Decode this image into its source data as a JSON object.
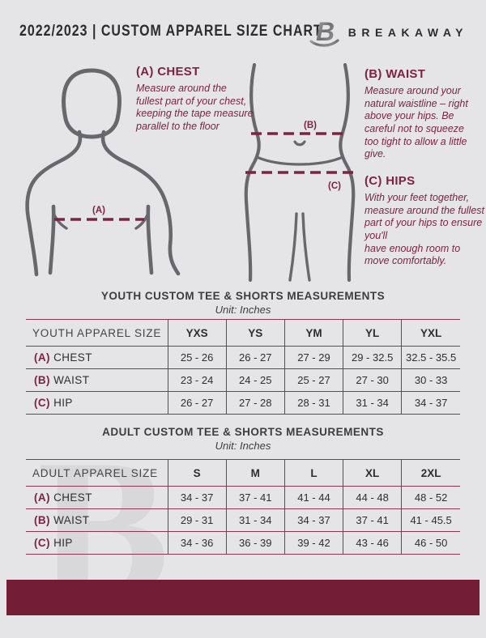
{
  "theme": {
    "background": "#e5e5e7",
    "accent_maroon": "#7d2342",
    "table_line": "#8e3453",
    "footer_bar": "#731d36",
    "dark_text": "#2e2e30",
    "figure_gray": "#67686b"
  },
  "header": {
    "title": "2022/2023  |  CUSTOM APPAREL SIZE CHART",
    "brand": "BREAKAWAY",
    "logo_letter": "B"
  },
  "guide": {
    "chest": {
      "label": "(A)",
      "heading": "(A) CHEST",
      "text": "Measure around the fullest part of your chest, keeping the tape measure parallel to the floor"
    },
    "waist": {
      "label": "(B)",
      "heading": "(B) WAIST",
      "text": "Measure around your natural waistline – right above your hips. Be careful not to squeeze too tight to allow a little give."
    },
    "hips": {
      "label": "(C)",
      "heading": "(C) HIPS",
      "text": "With your feet together, measure around the fullest part of your hips to ensure you'll\nhave enough room to move comfortably."
    }
  },
  "youth_table": {
    "title": "YOUTH CUSTOM TEE & SHORTS MEASUREMENTS",
    "unit": "Unit: Inches",
    "header": [
      "YOUTH APPAREL SIZE",
      "YXS",
      "YS",
      "YM",
      "YL",
      "YXL"
    ],
    "rows": [
      {
        "key": "(A)",
        "label": "CHEST",
        "values": [
          "25 - 26",
          "26 - 27",
          "27 - 29",
          "29 - 32.5",
          "32.5 - 35.5"
        ]
      },
      {
        "key": "(B)",
        "label": "WAIST",
        "values": [
          "23 - 24",
          "24 - 25",
          "25 - 27",
          "27 - 30",
          "30 - 33"
        ]
      },
      {
        "key": "(C)",
        "label": "HIP",
        "values": [
          "26 - 27",
          "27 - 28",
          "28 - 31",
          "31 - 34",
          "34 - 37"
        ]
      }
    ]
  },
  "adult_table": {
    "title": "ADULT CUSTOM TEE & SHORTS MEASUREMENTS",
    "unit": "Unit: Inches",
    "header": [
      "ADULT APPAREL SIZE",
      "S",
      "M",
      "L",
      "XL",
      "2XL"
    ],
    "rows": [
      {
        "key": "(A)",
        "label": "CHEST",
        "values": [
          "34 - 37",
          "37 - 41",
          "41 - 44",
          "44 - 48",
          "48 - 52"
        ]
      },
      {
        "key": "(B)",
        "label": "WAIST",
        "values": [
          "29 - 31",
          "31 - 34",
          "34 - 37",
          "37 - 41",
          "41 - 45.5"
        ]
      },
      {
        "key": "(C)",
        "label": "HIP",
        "values": [
          "34 - 36",
          "36 - 39",
          "39 - 42",
          "43 - 46",
          "46 - 50"
        ]
      }
    ]
  },
  "watermark": {
    "letter": "B"
  }
}
